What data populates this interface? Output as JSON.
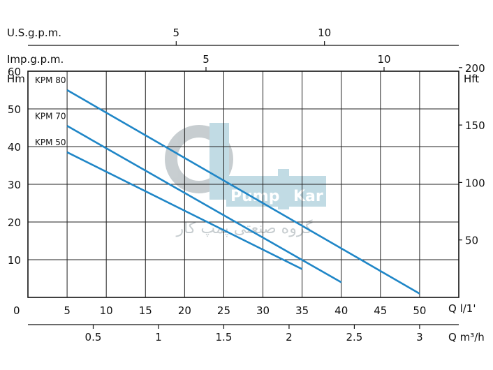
{
  "watermark": {
    "brand_left": "Pump",
    "brand_right": "Kar",
    "tagline": "گروه صنعتی پمپ کار",
    "color": "#8fbfcf"
  },
  "chart_data": {
    "type": "line",
    "title": "",
    "grid": true,
    "line_color": "#1f86c7",
    "x": {
      "label": "Q l/1'",
      "zero_label": "0",
      "range": [
        0,
        55
      ],
      "ticks": [
        5,
        10,
        15,
        20,
        25,
        30,
        35,
        40,
        45,
        50
      ]
    },
    "y_left": {
      "label": "Hm",
      "range": [
        0,
        60
      ],
      "ticks": [
        10,
        20,
        30,
        40,
        50,
        60
      ]
    },
    "y_right": {
      "label": "Hft",
      "ticks": [
        50,
        100,
        150,
        200
      ]
    },
    "top_axis_usgpm": {
      "label": "U.S.g.p.m.",
      "ticks": [
        5,
        10
      ]
    },
    "top_axis_impgpm": {
      "label": "Imp.g.p.m.",
      "ticks": [
        5,
        10
      ]
    },
    "bottom_axis_m3h": {
      "label": "Q m³/h",
      "ticks": [
        0.5,
        1,
        1.5,
        2,
        2.5,
        3
      ]
    },
    "series": [
      {
        "name": "KPM 80",
        "points": [
          [
            5,
            55
          ],
          [
            50,
            1
          ]
        ]
      },
      {
        "name": "KPM 70",
        "points": [
          [
            5,
            45.5
          ],
          [
            40,
            4
          ]
        ]
      },
      {
        "name": "KPM 50",
        "points": [
          [
            5,
            38.5
          ],
          [
            35,
            7.5
          ]
        ]
      }
    ]
  }
}
